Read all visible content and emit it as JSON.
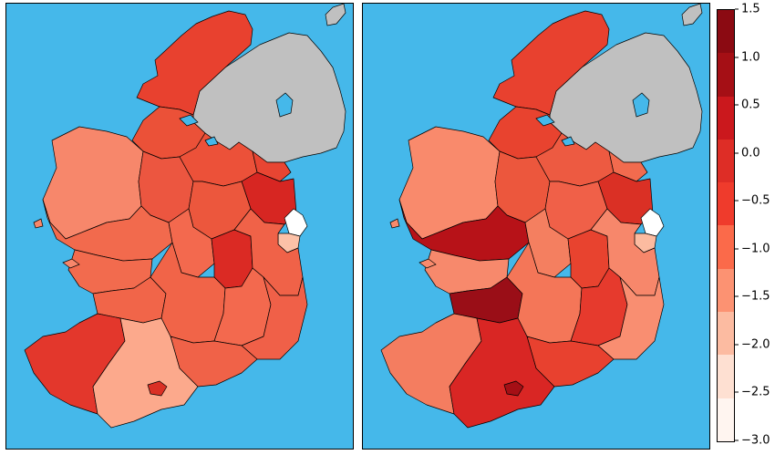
{
  "maps": [
    {
      "id": "left",
      "regions": {
        "donegal": "#e8412f",
        "mayo": "#f7876b",
        "sligo-leitrim": "#eb5138",
        "galway": "#f26a4d",
        "roscommon": "#ec5640",
        "midlands-west": "#ec573d",
        "midlands-north": "#ec5139",
        "meath": "#e84532",
        "dublin-north": "#d72622",
        "dublin-city": "#ffffff",
        "dublin-south": "#fcc1a7",
        "laois": "#db2a24",
        "offaly": "#f3694e",
        "kildare-wicklow": "#f06248",
        "clare": "#f26b4e",
        "limerick": "#f16549",
        "tipperary": "#f16448",
        "kilkenny": "#f3694e",
        "wexford": "#f06048",
        "waterford": "#f06248",
        "kerry": "#e3372c",
        "cork": "#fca98c",
        "cork-city": "#da3025"
      }
    },
    {
      "id": "right",
      "regions": {
        "donegal": "#e8412f",
        "mayo": "#f98a6c",
        "sligo-leitrim": "#e8432f",
        "galway": "#b71218",
        "roscommon": "#ec573d",
        "midlands-west": "#f06048",
        "midlands-north": "#ed5a41",
        "meath": "#f26b4e",
        "dublin-north": "#da3025",
        "dublin-city": "#ffffff",
        "dublin-south": "#fcbba0",
        "laois": "#e8432f",
        "offaly": "#f47f60",
        "kildare-wicklow": "#f7876b",
        "clare": "#f7896c",
        "limerick": "#9a0e17",
        "tipperary": "#f47658",
        "kilkenny": "#e63a2d",
        "wexford": "#f98e71",
        "waterford": "#e8412f",
        "kerry": "#f47d60",
        "cork": "#d92624",
        "cork-city": "#a50f15"
      }
    }
  ],
  "colors": {
    "sea": "#45b8ea",
    "northern_ireland": "#c0c0c0",
    "lough": "#45b8ea",
    "colorbar": [
      "#fff5f0",
      "#fee0d2",
      "#fcbba1",
      "#fc9272",
      "#fb6a4a",
      "#ef3b2c",
      "#de2d26",
      "#cb181d",
      "#a50f15",
      "#8b0a12"
    ]
  },
  "colorbar": {
    "ticks": [
      "1.5",
      "1.0",
      "0.5",
      "0.0",
      "−0.5",
      "−1.0",
      "−1.5",
      "−2.0",
      "−2.5",
      "−3.0"
    ],
    "min": -3.0,
    "max": 1.5
  }
}
